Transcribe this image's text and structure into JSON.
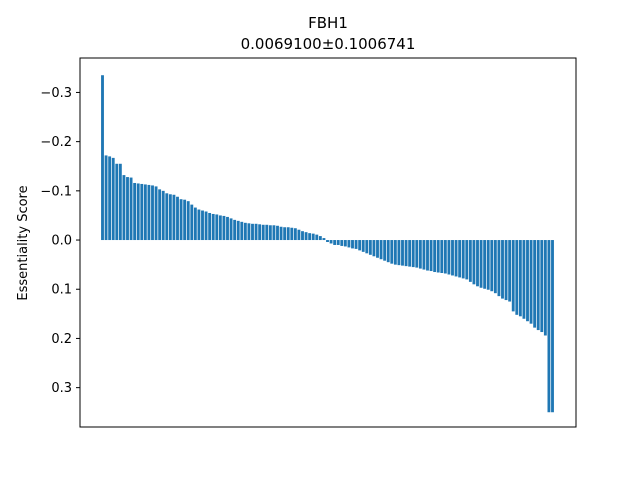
{
  "chart_data": {
    "type": "bar",
    "title": "FBH1",
    "subtitle": "0.0069100±0.1006741",
    "xlabel": "",
    "ylabel": "Essentiality Score",
    "y_inverted": true,
    "ylim": [
      -0.37,
      0.38
    ],
    "yticks": [
      {
        "value": -0.3,
        "label": "−0.3"
      },
      {
        "value": -0.2,
        "label": "−0.2"
      },
      {
        "value": -0.1,
        "label": "−0.1"
      },
      {
        "value": 0.0,
        "label": "0.0"
      },
      {
        "value": 0.1,
        "label": "0.1"
      },
      {
        "value": 0.2,
        "label": "0.2"
      },
      {
        "value": 0.3,
        "label": "0.3"
      }
    ],
    "xticks": [],
    "grid": false,
    "color": "#1f77b4",
    "values": [
      -0.335,
      -0.172,
      -0.17,
      -0.167,
      -0.155,
      -0.155,
      -0.132,
      -0.128,
      -0.127,
      -0.116,
      -0.115,
      -0.114,
      -0.113,
      -0.112,
      -0.111,
      -0.109,
      -0.103,
      -0.1,
      -0.095,
      -0.093,
      -0.092,
      -0.088,
      -0.083,
      -0.082,
      -0.079,
      -0.072,
      -0.066,
      -0.062,
      -0.06,
      -0.058,
      -0.055,
      -0.053,
      -0.052,
      -0.05,
      -0.049,
      -0.047,
      -0.044,
      -0.041,
      -0.039,
      -0.037,
      -0.035,
      -0.034,
      -0.033,
      -0.033,
      -0.032,
      -0.031,
      -0.031,
      -0.03,
      -0.03,
      -0.029,
      -0.027,
      -0.026,
      -0.026,
      -0.025,
      -0.024,
      -0.021,
      -0.018,
      -0.016,
      -0.014,
      -0.013,
      -0.011,
      -0.008,
      -0.004,
      0.004,
      0.007,
      0.01,
      0.01,
      0.012,
      0.013,
      0.015,
      0.017,
      0.018,
      0.021,
      0.024,
      0.027,
      0.03,
      0.033,
      0.036,
      0.039,
      0.042,
      0.045,
      0.048,
      0.05,
      0.051,
      0.052,
      0.053,
      0.054,
      0.055,
      0.056,
      0.058,
      0.06,
      0.062,
      0.063,
      0.065,
      0.066,
      0.067,
      0.068,
      0.07,
      0.072,
      0.074,
      0.076,
      0.078,
      0.08,
      0.085,
      0.09,
      0.094,
      0.097,
      0.099,
      0.101,
      0.104,
      0.108,
      0.114,
      0.119,
      0.122,
      0.125,
      0.145,
      0.152,
      0.155,
      0.16,
      0.165,
      0.17,
      0.178,
      0.183,
      0.187,
      0.194,
      0.35,
      0.35
    ]
  }
}
